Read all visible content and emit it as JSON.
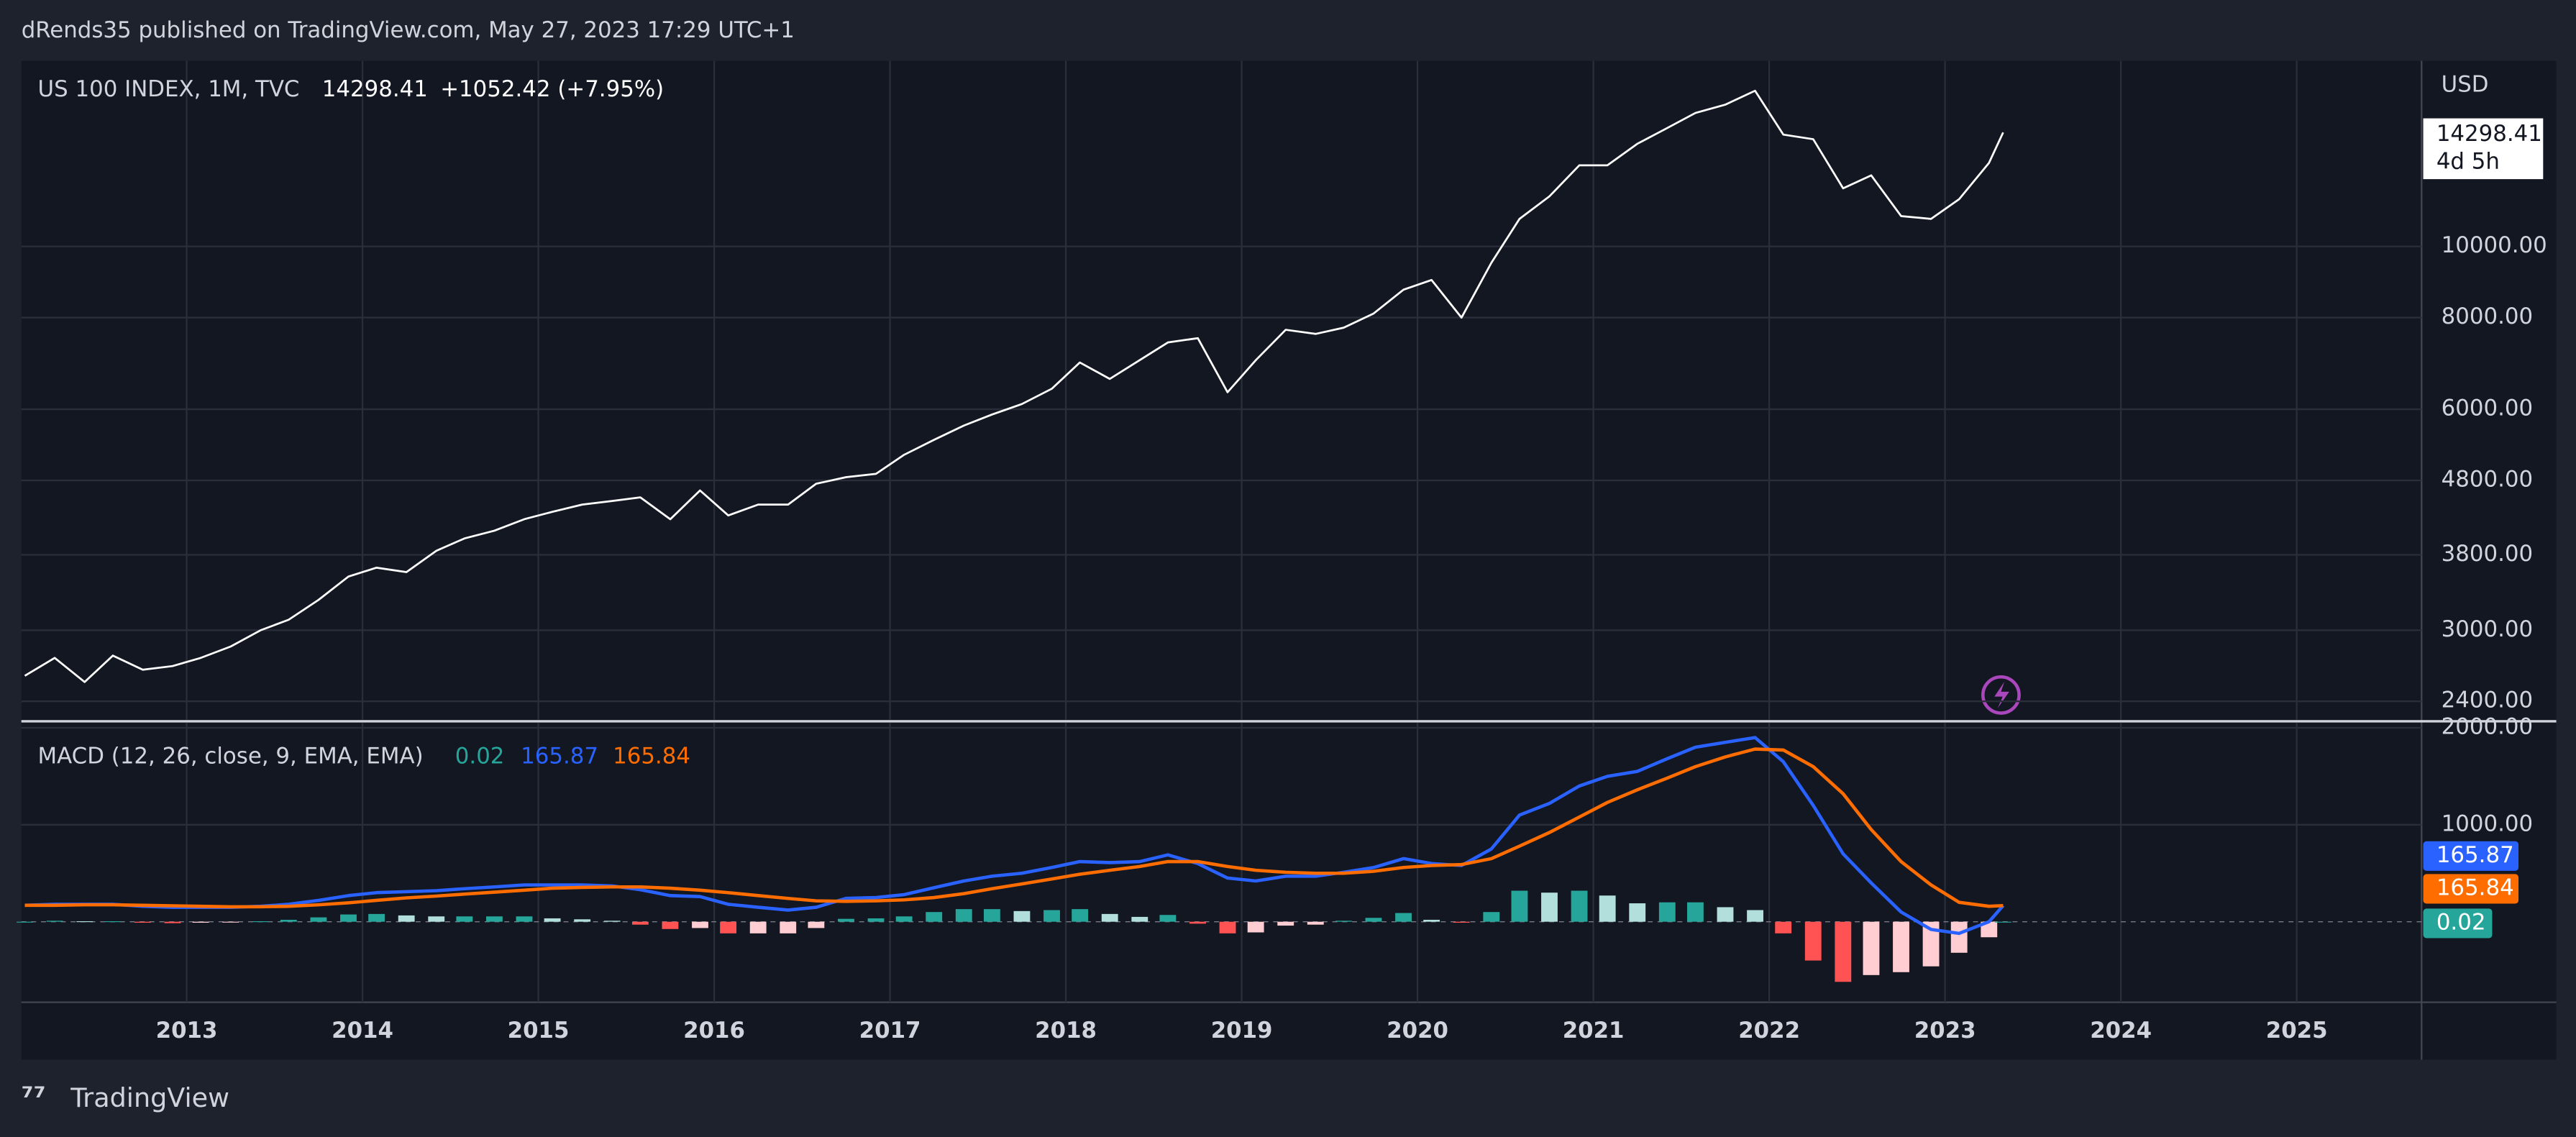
{
  "header": "dRends35 published on TradingView.com, May 27, 2023 17:29 UTC+1",
  "footer": "TradingView",
  "chart_data": [
    {
      "type": "line",
      "title": "US 100 INDEX, 1M, TVC",
      "change": "+1052.42 (+7.95%)",
      "currency": "USD",
      "countdown": "4d 5h",
      "log_scale": true,
      "grid": true,
      "x": [
        2012.08,
        2012.25,
        2012.42,
        2012.58,
        2012.75,
        2012.92,
        2013.08,
        2013.25,
        2013.42,
        2013.58,
        2013.75,
        2013.92,
        2014.08,
        2014.25,
        2014.42,
        2014.58,
        2014.75,
        2014.92,
        2015.08,
        2015.25,
        2015.42,
        2015.58,
        2015.75,
        2015.92,
        2016.08,
        2016.25,
        2016.42,
        2016.58,
        2016.75,
        2016.92,
        2017.08,
        2017.25,
        2017.42,
        2017.58,
        2017.75,
        2017.92,
        2018.08,
        2018.25,
        2018.42,
        2018.58,
        2018.75,
        2018.92,
        2019.08,
        2019.25,
        2019.42,
        2019.58,
        2019.75,
        2019.92,
        2020.08,
        2020.25,
        2020.42,
        2020.58,
        2020.75,
        2020.92,
        2021.08,
        2021.25,
        2021.42,
        2021.58,
        2021.75,
        2021.92,
        2022.08,
        2022.25,
        2022.42,
        2022.58,
        2022.75,
        2022.92,
        2023.08,
        2023.25,
        2023.33
      ],
      "xlim": [
        2012.06,
        2025.71
      ],
      "xticks": [
        2013,
        2014,
        2015,
        2016,
        2017,
        2018,
        2019,
        2020,
        2021,
        2022,
        2023,
        2024,
        2025
      ],
      "series": [
        {
          "color": "#ffffff",
          "values": [
            2600,
            2750,
            2550,
            2770,
            2650,
            2680,
            2750,
            2850,
            3000,
            3100,
            3300,
            3550,
            3650,
            3600,
            3850,
            4000,
            4100,
            4250,
            4350,
            4450,
            4500,
            4550,
            4250,
            4650,
            4300,
            4450,
            4450,
            4750,
            4850,
            4900,
            5200,
            5450,
            5700,
            5900,
            6100,
            6400,
            6950,
            6600,
            7000,
            7400,
            7500,
            6330,
            7000,
            7700,
            7600,
            7750,
            8100,
            8730,
            9000,
            8000,
            9500,
            10900,
            11700,
            12900,
            12900,
            13800,
            14500,
            15200,
            15600,
            16300,
            14200,
            14000,
            12000,
            12500,
            11000,
            10900,
            11600,
            13000,
            14298.41
          ]
        }
      ],
      "ylim": [
        2266,
        17900
      ],
      "yticks": [
        {
          "value": 2400,
          "label": "2400.00"
        },
        {
          "value": 3000,
          "label": "3000.00"
        },
        {
          "value": 3800,
          "label": "3800.00"
        },
        {
          "value": 4800,
          "label": "4800.00"
        },
        {
          "value": 6000,
          "label": "6000.00"
        },
        {
          "value": 8000,
          "label": "8000.00"
        },
        {
          "value": 10000,
          "label": "10000.00"
        }
      ]
    },
    {
      "type": "macd",
      "title": "MACD (12, 26, close, 9, EMA, EMA)",
      "grid": true,
      "series": [
        {
          "color": "#26a69a",
          "colors": [
            "#26a69a",
            "#b2dfdb",
            "#ffcdd2",
            "#ff5252"
          ],
          "values": [
            0,
            10,
            5,
            5,
            -10,
            -15,
            -10,
            -5,
            5,
            20,
            45,
            75,
            80,
            65,
            55,
            55,
            55,
            55,
            35,
            25,
            10,
            -30,
            -75,
            -65,
            -120,
            -120,
            -120,
            -65,
            30,
            35,
            55,
            100,
            130,
            130,
            110,
            120,
            130,
            80,
            50,
            70,
            -20,
            -120,
            -110,
            -40,
            -30,
            10,
            40,
            90,
            20,
            -10,
            100,
            320,
            300,
            320,
            270,
            190,
            200,
            200,
            150,
            120,
            -120,
            -400,
            -620,
            -550,
            -520,
            -460,
            -320,
            -160,
            0.02
          ]
        },
        {
          "color": "#2962ff",
          "values": [
            170,
            180,
            180,
            180,
            160,
            150,
            150,
            150,
            160,
            180,
            220,
            270,
            300,
            310,
            320,
            340,
            360,
            380,
            380,
            380,
            370,
            330,
            270,
            260,
            180,
            150,
            120,
            150,
            240,
            250,
            280,
            350,
            420,
            470,
            500,
            560,
            620,
            610,
            620,
            690,
            600,
            450,
            420,
            470,
            470,
            510,
            560,
            650,
            600,
            580,
            750,
            1100,
            1220,
            1400,
            1500,
            1550,
            1680,
            1800,
            1850,
            1900,
            1650,
            1200,
            700,
            400,
            100,
            -80,
            -120,
            0,
            165.87
          ]
        },
        {
          "color": "#ff6d00",
          "values": [
            170,
            170,
            175,
            175,
            170,
            165,
            160,
            155,
            155,
            160,
            175,
            195,
            220,
            245,
            265,
            285,
            305,
            325,
            345,
            355,
            360,
            360,
            345,
            325,
            300,
            270,
            240,
            215,
            210,
            215,
            225,
            250,
            290,
            340,
            390,
            440,
            490,
            530,
            570,
            620,
            620,
            570,
            530,
            510,
            500,
            500,
            520,
            560,
            580,
            590,
            650,
            780,
            920,
            1080,
            1230,
            1360,
            1480,
            1600,
            1700,
            1780,
            1770,
            1600,
            1320,
            950,
            620,
            380,
            200,
            160,
            165.84
          ]
        }
      ],
      "ylim": [
        -830,
        2050
      ],
      "yticks": [
        {
          "value": 1000,
          "label": "1000.00"
        },
        {
          "value": 2000,
          "label": "2000.00"
        }
      ]
    }
  ]
}
